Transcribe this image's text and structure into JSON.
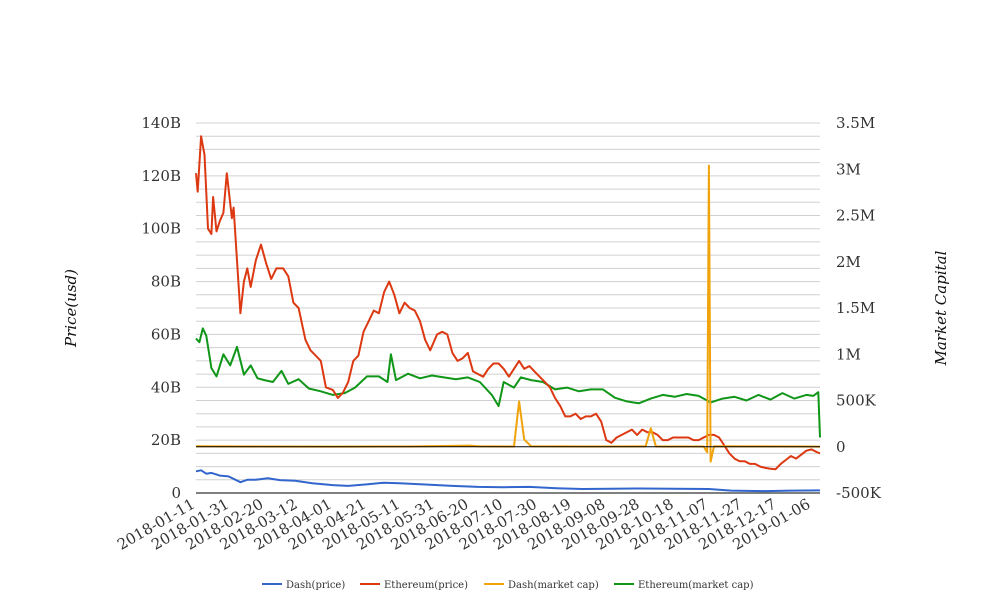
{
  "chart_data": {
    "type": "line",
    "title": "",
    "ylabel": "Price(usd)",
    "y2label": "Market Capital",
    "ylim": [
      0,
      140000000000
    ],
    "y2lim": [
      -500000,
      3500000
    ],
    "y_ticks": [
      "0",
      "20B",
      "40B",
      "60B",
      "80B",
      "100B",
      "120B",
      "140B"
    ],
    "y2_ticks": [
      "-500K",
      "0",
      "500K",
      "1M",
      "1.5M",
      "2M",
      "2.5M",
      "3M",
      "3.5M"
    ],
    "x_ticks": [
      "2018-01-11",
      "2018-01-31",
      "2018-02-20",
      "2018-03-12",
      "2018-04-01",
      "2018-04-21",
      "2018-05-11",
      "2018-05-31",
      "2018-06-20",
      "2018-07-10",
      "2018-07-30",
      "2018-08-19",
      "2018-09-08",
      "2018-09-28",
      "2018-10-18",
      "2018-11-07",
      "2018-11-27",
      "2018-12-17",
      "2019-01-06"
    ],
    "x_range": [
      "2018-01-11",
      "2019-01-11"
    ],
    "grid": true,
    "legend_position": "bottom",
    "series": [
      {
        "name": "Dash(price)",
        "axis": "left",
        "color": "#3366cc",
        "points": [
          [
            "2018-01-11",
            8200000000
          ],
          [
            "2018-01-14",
            8600000000
          ],
          [
            "2018-01-17",
            7300000000
          ],
          [
            "2018-01-20",
            7600000000
          ],
          [
            "2018-01-25",
            6600000000
          ],
          [
            "2018-01-30",
            6300000000
          ],
          [
            "2018-02-06",
            4100000000
          ],
          [
            "2018-02-10",
            5000000000
          ],
          [
            "2018-02-15",
            5000000000
          ],
          [
            "2018-02-22",
            5600000000
          ],
          [
            "2018-03-01",
            4900000000
          ],
          [
            "2018-03-10",
            4600000000
          ],
          [
            "2018-03-20",
            3700000000
          ],
          [
            "2018-04-01",
            3000000000
          ],
          [
            "2018-04-10",
            2700000000
          ],
          [
            "2018-04-20",
            3200000000
          ],
          [
            "2018-05-01",
            3900000000
          ],
          [
            "2018-05-10",
            3700000000
          ],
          [
            "2018-05-25",
            3200000000
          ],
          [
            "2018-06-10",
            2700000000
          ],
          [
            "2018-06-25",
            2300000000
          ],
          [
            "2018-07-10",
            2200000000
          ],
          [
            "2018-07-25",
            2300000000
          ],
          [
            "2018-08-10",
            1800000000
          ],
          [
            "2018-08-25",
            1500000000
          ],
          [
            "2018-09-10",
            1600000000
          ],
          [
            "2018-09-28",
            1700000000
          ],
          [
            "2018-10-18",
            1600000000
          ],
          [
            "2018-11-07",
            1500000000
          ],
          [
            "2018-11-20",
            900000000
          ],
          [
            "2018-12-10",
            700000000
          ],
          [
            "2018-12-25",
            900000000
          ],
          [
            "2019-01-11",
            1000000000
          ]
        ]
      },
      {
        "name": "Ethereum(price)",
        "axis": "left",
        "color": "#dc3912",
        "points": [
          [
            "2018-01-11",
            121000000000
          ],
          [
            "2018-01-12",
            114000000000
          ],
          [
            "2018-01-14",
            135000000000
          ],
          [
            "2018-01-16",
            128000000000
          ],
          [
            "2018-01-18",
            100000000000
          ],
          [
            "2018-01-20",
            98000000000
          ],
          [
            "2018-01-21",
            112000000000
          ],
          [
            "2018-01-23",
            99000000000
          ],
          [
            "2018-01-25",
            103000000000
          ],
          [
            "2018-01-27",
            106000000000
          ],
          [
            "2018-01-29",
            121000000000
          ],
          [
            "2018-02-01",
            104000000000
          ],
          [
            "2018-02-02",
            108000000000
          ],
          [
            "2018-02-04",
            88000000000
          ],
          [
            "2018-02-06",
            68000000000
          ],
          [
            "2018-02-08",
            80000000000
          ],
          [
            "2018-02-10",
            85000000000
          ],
          [
            "2018-02-12",
            78000000000
          ],
          [
            "2018-02-15",
            88000000000
          ],
          [
            "2018-02-18",
            94000000000
          ],
          [
            "2018-02-21",
            87000000000
          ],
          [
            "2018-02-24",
            81000000000
          ],
          [
            "2018-02-27",
            85000000000
          ],
          [
            "2018-03-03",
            85000000000
          ],
          [
            "2018-03-06",
            82000000000
          ],
          [
            "2018-03-09",
            72000000000
          ],
          [
            "2018-03-12",
            70000000000
          ],
          [
            "2018-03-16",
            58000000000
          ],
          [
            "2018-03-19",
            54000000000
          ],
          [
            "2018-03-22",
            52000000000
          ],
          [
            "2018-03-25",
            50000000000
          ],
          [
            "2018-03-28",
            40000000000
          ],
          [
            "2018-04-01",
            39000000000
          ],
          [
            "2018-04-04",
            36000000000
          ],
          [
            "2018-04-07",
            38000000000
          ],
          [
            "2018-04-10",
            42000000000
          ],
          [
            "2018-04-13",
            50000000000
          ],
          [
            "2018-04-16",
            52000000000
          ],
          [
            "2018-04-19",
            61000000000
          ],
          [
            "2018-04-22",
            65000000000
          ],
          [
            "2018-04-25",
            69000000000
          ],
          [
            "2018-04-28",
            68000000000
          ],
          [
            "2018-05-01",
            76000000000
          ],
          [
            "2018-05-04",
            80000000000
          ],
          [
            "2018-05-07",
            75000000000
          ],
          [
            "2018-05-10",
            68000000000
          ],
          [
            "2018-05-13",
            72000000000
          ],
          [
            "2018-05-16",
            70000000000
          ],
          [
            "2018-05-19",
            69000000000
          ],
          [
            "2018-05-22",
            65000000000
          ],
          [
            "2018-05-25",
            58000000000
          ],
          [
            "2018-05-28",
            54000000000
          ],
          [
            "2018-06-01",
            60000000000
          ],
          [
            "2018-06-04",
            61000000000
          ],
          [
            "2018-06-07",
            60000000000
          ],
          [
            "2018-06-10",
            53000000000
          ],
          [
            "2018-06-13",
            50000000000
          ],
          [
            "2018-06-16",
            51000000000
          ],
          [
            "2018-06-19",
            53000000000
          ],
          [
            "2018-06-22",
            46000000000
          ],
          [
            "2018-06-25",
            45000000000
          ],
          [
            "2018-06-28",
            44000000000
          ],
          [
            "2018-07-01",
            47000000000
          ],
          [
            "2018-07-04",
            49000000000
          ],
          [
            "2018-07-07",
            49000000000
          ],
          [
            "2018-07-10",
            47000000000
          ],
          [
            "2018-07-13",
            44000000000
          ],
          [
            "2018-07-16",
            47000000000
          ],
          [
            "2018-07-19",
            50000000000
          ],
          [
            "2018-07-22",
            47000000000
          ],
          [
            "2018-07-25",
            48000000000
          ],
          [
            "2018-07-28",
            46000000000
          ],
          [
            "2018-07-31",
            44000000000
          ],
          [
            "2018-08-03",
            42000000000
          ],
          [
            "2018-08-06",
            40000000000
          ],
          [
            "2018-08-09",
            36000000000
          ],
          [
            "2018-08-12",
            33000000000
          ],
          [
            "2018-08-15",
            29000000000
          ],
          [
            "2018-08-18",
            29000000000
          ],
          [
            "2018-08-21",
            30000000000
          ],
          [
            "2018-08-24",
            28000000000
          ],
          [
            "2018-08-27",
            29000000000
          ],
          [
            "2018-08-30",
            29000000000
          ],
          [
            "2018-09-02",
            30000000000
          ],
          [
            "2018-09-05",
            27000000000
          ],
          [
            "2018-09-08",
            20000000000
          ],
          [
            "2018-09-11",
            19000000000
          ],
          [
            "2018-09-14",
            21000000000
          ],
          [
            "2018-09-17",
            22000000000
          ],
          [
            "2018-09-20",
            23000000000
          ],
          [
            "2018-09-23",
            24000000000
          ],
          [
            "2018-09-26",
            22000000000
          ],
          [
            "2018-09-29",
            24000000000
          ],
          [
            "2018-10-02",
            23000000000
          ],
          [
            "2018-10-05",
            23000000000
          ],
          [
            "2018-10-08",
            22000000000
          ],
          [
            "2018-10-11",
            20000000000
          ],
          [
            "2018-10-14",
            20000000000
          ],
          [
            "2018-10-17",
            21000000000
          ],
          [
            "2018-10-20",
            21000000000
          ],
          [
            "2018-10-23",
            21000000000
          ],
          [
            "2018-10-26",
            21000000000
          ],
          [
            "2018-10-29",
            20000000000
          ],
          [
            "2018-11-01",
            20000000000
          ],
          [
            "2018-11-04",
            21000000000
          ],
          [
            "2018-11-07",
            22000000000
          ],
          [
            "2018-11-10",
            22000000000
          ],
          [
            "2018-11-13",
            21000000000
          ],
          [
            "2018-11-16",
            18000000000
          ],
          [
            "2018-11-19",
            15000000000
          ],
          [
            "2018-11-22",
            13000000000
          ],
          [
            "2018-11-25",
            12000000000
          ],
          [
            "2018-11-28",
            12000000000
          ],
          [
            "2018-12-01",
            11000000000
          ],
          [
            "2018-12-04",
            11000000000
          ],
          [
            "2018-12-07",
            10000000000
          ],
          [
            "2018-12-10",
            9500000000
          ],
          [
            "2018-12-13",
            9200000000
          ],
          [
            "2018-12-16",
            9000000000
          ],
          [
            "2018-12-19",
            11000000000
          ],
          [
            "2018-12-22",
            12500000000
          ],
          [
            "2018-12-25",
            14000000000
          ],
          [
            "2018-12-28",
            13000000000
          ],
          [
            "2018-12-31",
            14500000000
          ],
          [
            "2019-01-03",
            16000000000
          ],
          [
            "2019-01-06",
            16500000000
          ],
          [
            "2019-01-09",
            15500000000
          ],
          [
            "2019-01-11",
            15000000000
          ]
        ]
      },
      {
        "name": "Dash(market cap)",
        "axis": "right",
        "color": "#f0a30a",
        "points": [
          [
            "2018-01-11",
            5000
          ],
          [
            "2018-02-15",
            3000
          ],
          [
            "2018-04-01",
            2000
          ],
          [
            "2018-05-15",
            3000
          ],
          [
            "2018-06-20",
            12000
          ],
          [
            "2018-06-25",
            5000
          ],
          [
            "2018-07-16",
            3000
          ],
          [
            "2018-07-19",
            490000
          ],
          [
            "2018-07-22",
            80000
          ],
          [
            "2018-07-26",
            5000
          ],
          [
            "2018-08-30",
            3000
          ],
          [
            "2018-10-01",
            4000
          ],
          [
            "2018-10-04",
            200000
          ],
          [
            "2018-10-07",
            3000
          ],
          [
            "2018-11-04",
            3000
          ],
          [
            "2018-11-06",
            -60000
          ],
          [
            "2018-11-07",
            3040000
          ],
          [
            "2018-11-08",
            -160000
          ],
          [
            "2018-11-10",
            5000
          ],
          [
            "2018-12-31",
            3000
          ],
          [
            "2019-01-11",
            2000
          ]
        ]
      },
      {
        "name": "Ethereum(market cap)",
        "axis": "right",
        "color": "#109618",
        "points": [
          [
            "2018-01-11",
            1170000
          ],
          [
            "2018-01-13",
            1130000
          ],
          [
            "2018-01-15",
            1280000
          ],
          [
            "2018-01-17",
            1200000
          ],
          [
            "2018-01-20",
            850000
          ],
          [
            "2018-01-23",
            760000
          ],
          [
            "2018-01-27",
            1000000
          ],
          [
            "2018-01-31",
            880000
          ],
          [
            "2018-02-04",
            1080000
          ],
          [
            "2018-02-08",
            780000
          ],
          [
            "2018-02-12",
            880000
          ],
          [
            "2018-02-16",
            740000
          ],
          [
            "2018-02-20",
            720000
          ],
          [
            "2018-02-25",
            700000
          ],
          [
            "2018-03-02",
            820000
          ],
          [
            "2018-03-06",
            680000
          ],
          [
            "2018-03-12",
            730000
          ],
          [
            "2018-03-18",
            630000
          ],
          [
            "2018-03-25",
            600000
          ],
          [
            "2018-04-01",
            560000
          ],
          [
            "2018-04-08",
            580000
          ],
          [
            "2018-04-14",
            640000
          ],
          [
            "2018-04-21",
            760000
          ],
          [
            "2018-04-28",
            760000
          ],
          [
            "2018-05-03",
            700000
          ],
          [
            "2018-05-05",
            1000000
          ],
          [
            "2018-05-08",
            720000
          ],
          [
            "2018-05-15",
            790000
          ],
          [
            "2018-05-22",
            740000
          ],
          [
            "2018-05-29",
            770000
          ],
          [
            "2018-06-05",
            750000
          ],
          [
            "2018-06-12",
            730000
          ],
          [
            "2018-06-19",
            750000
          ],
          [
            "2018-06-26",
            700000
          ],
          [
            "2018-07-03",
            560000
          ],
          [
            "2018-07-07",
            440000
          ],
          [
            "2018-07-10",
            700000
          ],
          [
            "2018-07-16",
            640000
          ],
          [
            "2018-07-20",
            750000
          ],
          [
            "2018-07-26",
            720000
          ],
          [
            "2018-08-02",
            700000
          ],
          [
            "2018-08-09",
            620000
          ],
          [
            "2018-08-16",
            640000
          ],
          [
            "2018-08-23",
            600000
          ],
          [
            "2018-08-30",
            620000
          ],
          [
            "2018-09-06",
            620000
          ],
          [
            "2018-09-13",
            530000
          ],
          [
            "2018-09-20",
            490000
          ],
          [
            "2018-09-27",
            470000
          ],
          [
            "2018-10-04",
            520000
          ],
          [
            "2018-10-11",
            560000
          ],
          [
            "2018-10-18",
            540000
          ],
          [
            "2018-10-25",
            570000
          ],
          [
            "2018-11-01",
            550000
          ],
          [
            "2018-11-08",
            480000
          ],
          [
            "2018-11-15",
            520000
          ],
          [
            "2018-11-22",
            540000
          ],
          [
            "2018-11-29",
            500000
          ],
          [
            "2018-12-06",
            560000
          ],
          [
            "2018-12-13",
            510000
          ],
          [
            "2018-12-20",
            580000
          ],
          [
            "2018-12-27",
            520000
          ],
          [
            "2019-01-03",
            560000
          ],
          [
            "2019-01-07",
            550000
          ],
          [
            "2019-01-10",
            590000
          ],
          [
            "2019-01-11",
            100000
          ]
        ]
      }
    ]
  }
}
